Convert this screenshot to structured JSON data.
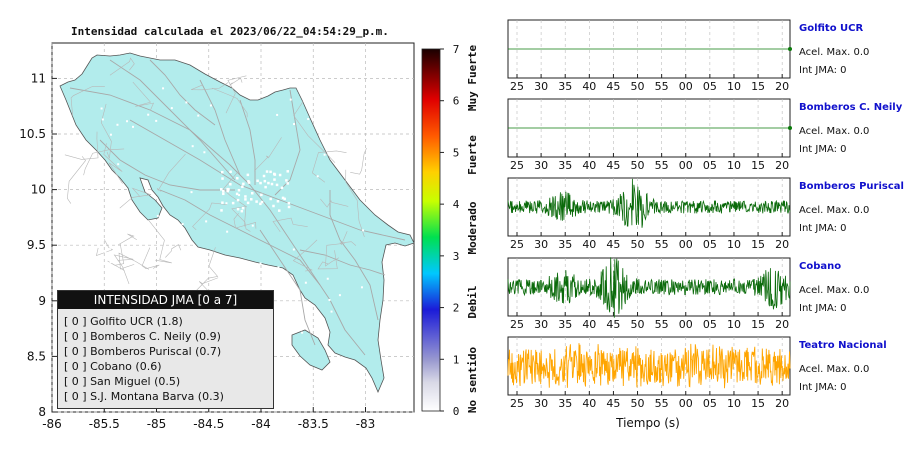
{
  "map": {
    "title": "Intensidad calculada el 2023/06/22_04:54:29_p.m.",
    "x_ticks": [
      "-86",
      "-85.5",
      "-85",
      "-84.5",
      "-84",
      "-83.5",
      "-83"
    ],
    "y_ticks": [
      "11",
      "10.5",
      "10",
      "9.5",
      "9",
      "8.5",
      "8"
    ],
    "land_color": "#b2ecec",
    "road_color": "#aaaaaa"
  },
  "colorbar": {
    "ticks": [
      "0",
      "1",
      "2",
      "3",
      "4",
      "5",
      "6",
      "7"
    ],
    "labels": [
      "No sentido",
      "Debil",
      "Moderado",
      "Fuerte",
      "Muy Fuerte"
    ]
  },
  "legend": {
    "title": "INTENSIDAD JMA [0 a 7]",
    "items": [
      {
        "level": "[ 0 ]",
        "name": "Golfito UCR (1.8)"
      },
      {
        "level": "[ 0 ]",
        "name": "Bomberos C. Neily (0.9)"
      },
      {
        "level": "[ 0 ]",
        "name": "Bomberos Puriscal (0.7)"
      },
      {
        "level": "[ 0 ]",
        "name": "Cobano (0.6)"
      },
      {
        "level": "[ 0 ]",
        "name": "San Miguel (0.5)"
      },
      {
        "level": "[ 0 ]",
        "name": "S.J. Montana Barva (0.3)"
      }
    ]
  },
  "chart_data": {
    "type": "line",
    "x_label": "Tiempo (s)",
    "x_ticks": [
      "25",
      "30",
      "35",
      "40",
      "45",
      "50",
      "55",
      "00",
      "05",
      "10",
      "15",
      "20"
    ],
    "panels": [
      {
        "name": "Golfito UCR",
        "acel": "Acel. Max. 0.0",
        "int": "Int JMA: 0",
        "color": "#0a7a0a",
        "amplitude": 0.0,
        "bursts": []
      },
      {
        "name": "Bomberos C. Neily",
        "acel": "Acel. Max. 0.0",
        "int": "Int JMA: 0",
        "color": "#0a7a0a",
        "amplitude": 0.0,
        "bursts": []
      },
      {
        "name": "Bomberos Puriscal",
        "acel": "Acel. Max. 0.0",
        "int": "Int JMA: 0",
        "color": "#0a6a0a",
        "amplitude": 0.25,
        "bursts": [
          {
            "t": 47,
            "a": 0.9
          },
          {
            "t": 33,
            "a": 0.4
          }
        ]
      },
      {
        "name": "Cobano",
        "acel": "Acel. Max. 0.0",
        "int": "Int JMA: 0",
        "color": "#0a6a0a",
        "amplitude": 0.3,
        "bursts": [
          {
            "t": 43,
            "a": 0.9
          },
          {
            "t": 15,
            "a": 0.6
          },
          {
            "t": 33,
            "a": 0.5
          }
        ]
      },
      {
        "name": "Teatro Nacional",
        "acel": "Acel. Max. 0.0",
        "int": "Int JMA: 0",
        "color": "#ffa500",
        "amplitude": 0.75,
        "bursts": []
      }
    ]
  }
}
